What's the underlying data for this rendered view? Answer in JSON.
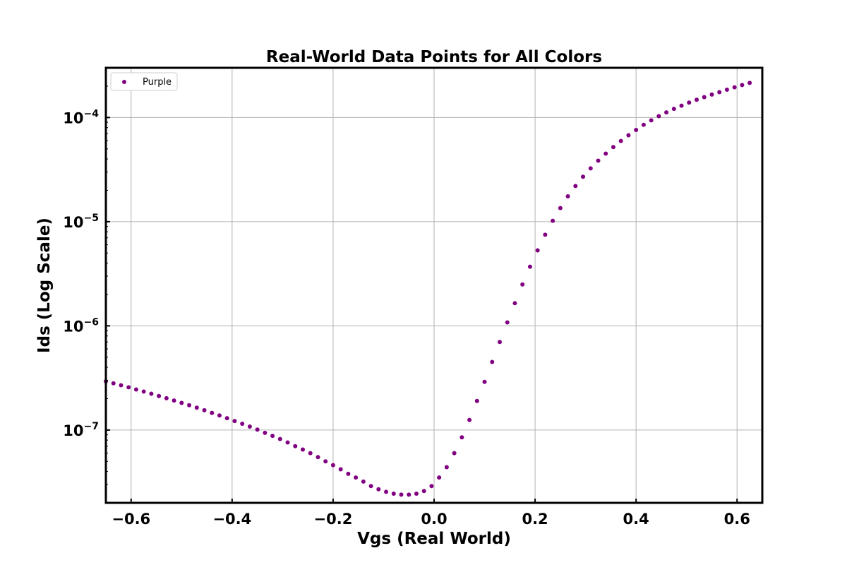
{
  "chart_data": {
    "type": "scatter",
    "title": "Real-World Data Points for All Colors",
    "xlabel": "Vgs (Real World)",
    "ylabel": "Ids (Log Scale)",
    "xlim": [
      -0.65,
      0.65
    ],
    "ylim": [
      2e-08,
      0.0003
    ],
    "yscale": "log",
    "grid": true,
    "legend_position": "top-left",
    "x_ticks": [
      -0.6,
      -0.4,
      -0.2,
      0.0,
      0.2,
      0.4,
      0.6
    ],
    "x_tick_labels": [
      "−0.6",
      "−0.4",
      "−0.2",
      "0.0",
      "0.2",
      "0.4",
      "0.6"
    ],
    "y_ticks": [
      1e-07,
      1e-06,
      1e-05,
      0.0001
    ],
    "y_tick_labels": [
      {
        "base": "10",
        "exp": "−7"
      },
      {
        "base": "10",
        "exp": "−6"
      },
      {
        "base": "10",
        "exp": "−5"
      },
      {
        "base": "10",
        "exp": "−4"
      }
    ],
    "series": [
      {
        "name": "Purple",
        "color": "#800080",
        "x": [
          -0.65,
          -0.635,
          -0.62,
          -0.605,
          -0.59,
          -0.575,
          -0.56,
          -0.545,
          -0.53,
          -0.515,
          -0.5,
          -0.485,
          -0.47,
          -0.455,
          -0.44,
          -0.425,
          -0.41,
          -0.395,
          -0.38,
          -0.365,
          -0.35,
          -0.335,
          -0.32,
          -0.305,
          -0.29,
          -0.275,
          -0.26,
          -0.245,
          -0.23,
          -0.215,
          -0.2,
          -0.185,
          -0.17,
          -0.155,
          -0.14,
          -0.125,
          -0.11,
          -0.095,
          -0.08,
          -0.065,
          -0.05,
          -0.035,
          -0.02,
          -0.005,
          0.01,
          0.025,
          0.04,
          0.055,
          0.07,
          0.085,
          0.1,
          0.115,
          0.13,
          0.145,
          0.16,
          0.175,
          0.19,
          0.205,
          0.22,
          0.235,
          0.25,
          0.265,
          0.28,
          0.295,
          0.31,
          0.325,
          0.34,
          0.355,
          0.37,
          0.385,
          0.4,
          0.415,
          0.43,
          0.445,
          0.46,
          0.475,
          0.49,
          0.505,
          0.52,
          0.535,
          0.55,
          0.565,
          0.58,
          0.595,
          0.61,
          0.625
        ],
        "y": [
          2.93e-07,
          2.81e-07,
          2.69e-07,
          2.57e-07,
          2.45e-07,
          2.34e-07,
          2.23e-07,
          2.12e-07,
          2.02e-07,
          1.92e-07,
          1.82e-07,
          1.73e-07,
          1.64e-07,
          1.55e-07,
          1.46e-07,
          1.38e-07,
          1.3e-07,
          1.22e-07,
          1.15e-07,
          1.08e-07,
          1.01e-07,
          9.4e-08,
          8.8e-08,
          8.2e-08,
          7.6e-08,
          7e-08,
          6.5e-08,
          6e-08,
          5.5e-08,
          5e-08,
          4.6e-08,
          4.2e-08,
          3.8e-08,
          3.5e-08,
          3.2e-08,
          2.9e-08,
          2.7e-08,
          2.55e-08,
          2.45e-08,
          2.4e-08,
          2.4e-08,
          2.45e-08,
          2.6e-08,
          2.9e-08,
          3.5e-08,
          4.4e-08,
          6e-08,
          8.5e-08,
          1.25e-07,
          1.9e-07,
          2.9e-07,
          4.5e-07,
          7e-07,
          1.08e-06,
          1.65e-06,
          2.5e-06,
          3.7e-06,
          5.3e-06,
          7.5e-06,
          1.02e-05,
          1.35e-05,
          1.75e-05,
          2.2e-05,
          2.7e-05,
          3.25e-05,
          3.85e-05,
          4.5e-05,
          5.2e-05,
          5.95e-05,
          6.75e-05,
          7.6e-05,
          8.5e-05,
          9.4e-05,
          0.000103,
          0.000112,
          0.000121,
          0.00013,
          0.000139,
          0.000148,
          0.000157,
          0.000166,
          0.000175,
          0.000185,
          0.000195,
          0.000205,
          0.000215
        ]
      }
    ]
  }
}
